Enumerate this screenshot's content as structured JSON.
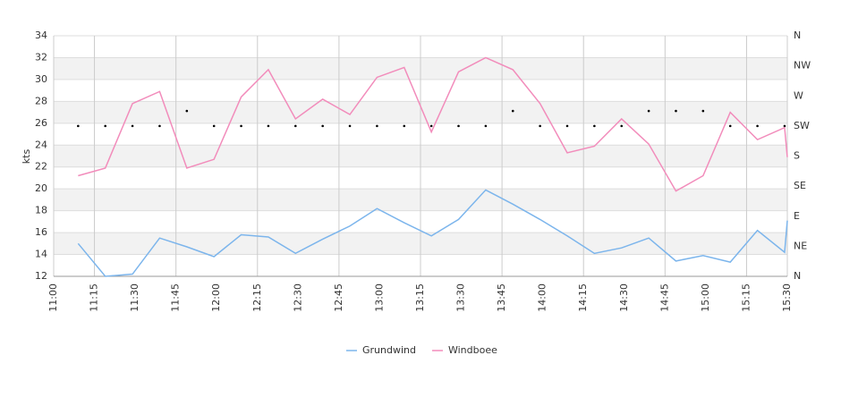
{
  "chart_data": {
    "type": "line",
    "y_label": "kts",
    "x": [
      "11:09",
      "11:19",
      "11:29",
      "11:39",
      "11:49",
      "11:59",
      "12:09",
      "12:19",
      "12:29",
      "12:39",
      "12:49",
      "12:59",
      "13:09",
      "13:19",
      "13:29",
      "13:39",
      "13:49",
      "13:59",
      "14:09",
      "14:19",
      "14:29",
      "14:39",
      "14:49",
      "14:59",
      "15:09",
      "15:19",
      "15:29",
      "15:30"
    ],
    "xlim": [
      "11:00",
      "15:30"
    ],
    "xticks": [
      "11:00",
      "11:15",
      "11:30",
      "11:45",
      "12:00",
      "12:15",
      "12:30",
      "12:45",
      "13:00",
      "13:15",
      "13:30",
      "13:45",
      "14:00",
      "14:15",
      "14:30",
      "14:45",
      "15:00",
      "15:15",
      "15:30"
    ],
    "series": [
      {
        "name": "Grundwind",
        "color": "#7cb5ec",
        "values": [
          15.0,
          12.0,
          12.2,
          15.5,
          14.7,
          13.8,
          15.8,
          15.6,
          14.1,
          15.4,
          16.6,
          18.2,
          16.9,
          15.7,
          17.2,
          19.9,
          18.6,
          17.2,
          15.7,
          14.1,
          14.6,
          15.5,
          13.4,
          13.9,
          13.3,
          16.2,
          14.2,
          17.1
        ]
      },
      {
        "name": "Windboee",
        "color": "#f28cbb",
        "values": [
          21.2,
          21.9,
          27.8,
          28.9,
          21.9,
          22.7,
          28.4,
          30.9,
          26.4,
          28.2,
          26.8,
          30.2,
          31.1,
          25.2,
          30.7,
          32.0,
          30.9,
          27.8,
          23.3,
          23.9,
          26.4,
          24.1,
          19.8,
          21.2,
          27.0,
          24.5,
          25.6,
          22.9
        ]
      }
    ],
    "direction": {
      "axis": "y2",
      "color": "#000000",
      "values": [
        225,
        225,
        225,
        225,
        247.5,
        225,
        225,
        225,
        225,
        225,
        225,
        225,
        225,
        225,
        225,
        225,
        247.5,
        225,
        225,
        225,
        225,
        247.5,
        247.5,
        247.5,
        225,
        225,
        225
      ]
    },
    "ylim": [
      12,
      34
    ],
    "yticks": [
      12,
      14,
      16,
      18,
      20,
      22,
      24,
      26,
      28,
      30,
      32,
      34
    ],
    "y2lim": [
      0,
      360
    ],
    "y2ticks": [
      {
        "value": 0,
        "label": "N"
      },
      {
        "value": 45,
        "label": "NE"
      },
      {
        "value": 90,
        "label": "E"
      },
      {
        "value": 135,
        "label": "SE"
      },
      {
        "value": 180,
        "label": "S"
      },
      {
        "value": 225,
        "label": "SW"
      },
      {
        "value": 270,
        "label": "W"
      },
      {
        "value": 315,
        "label": "NW"
      },
      {
        "value": 360,
        "label": "N"
      }
    ],
    "grid": true,
    "legend": "bottom"
  }
}
